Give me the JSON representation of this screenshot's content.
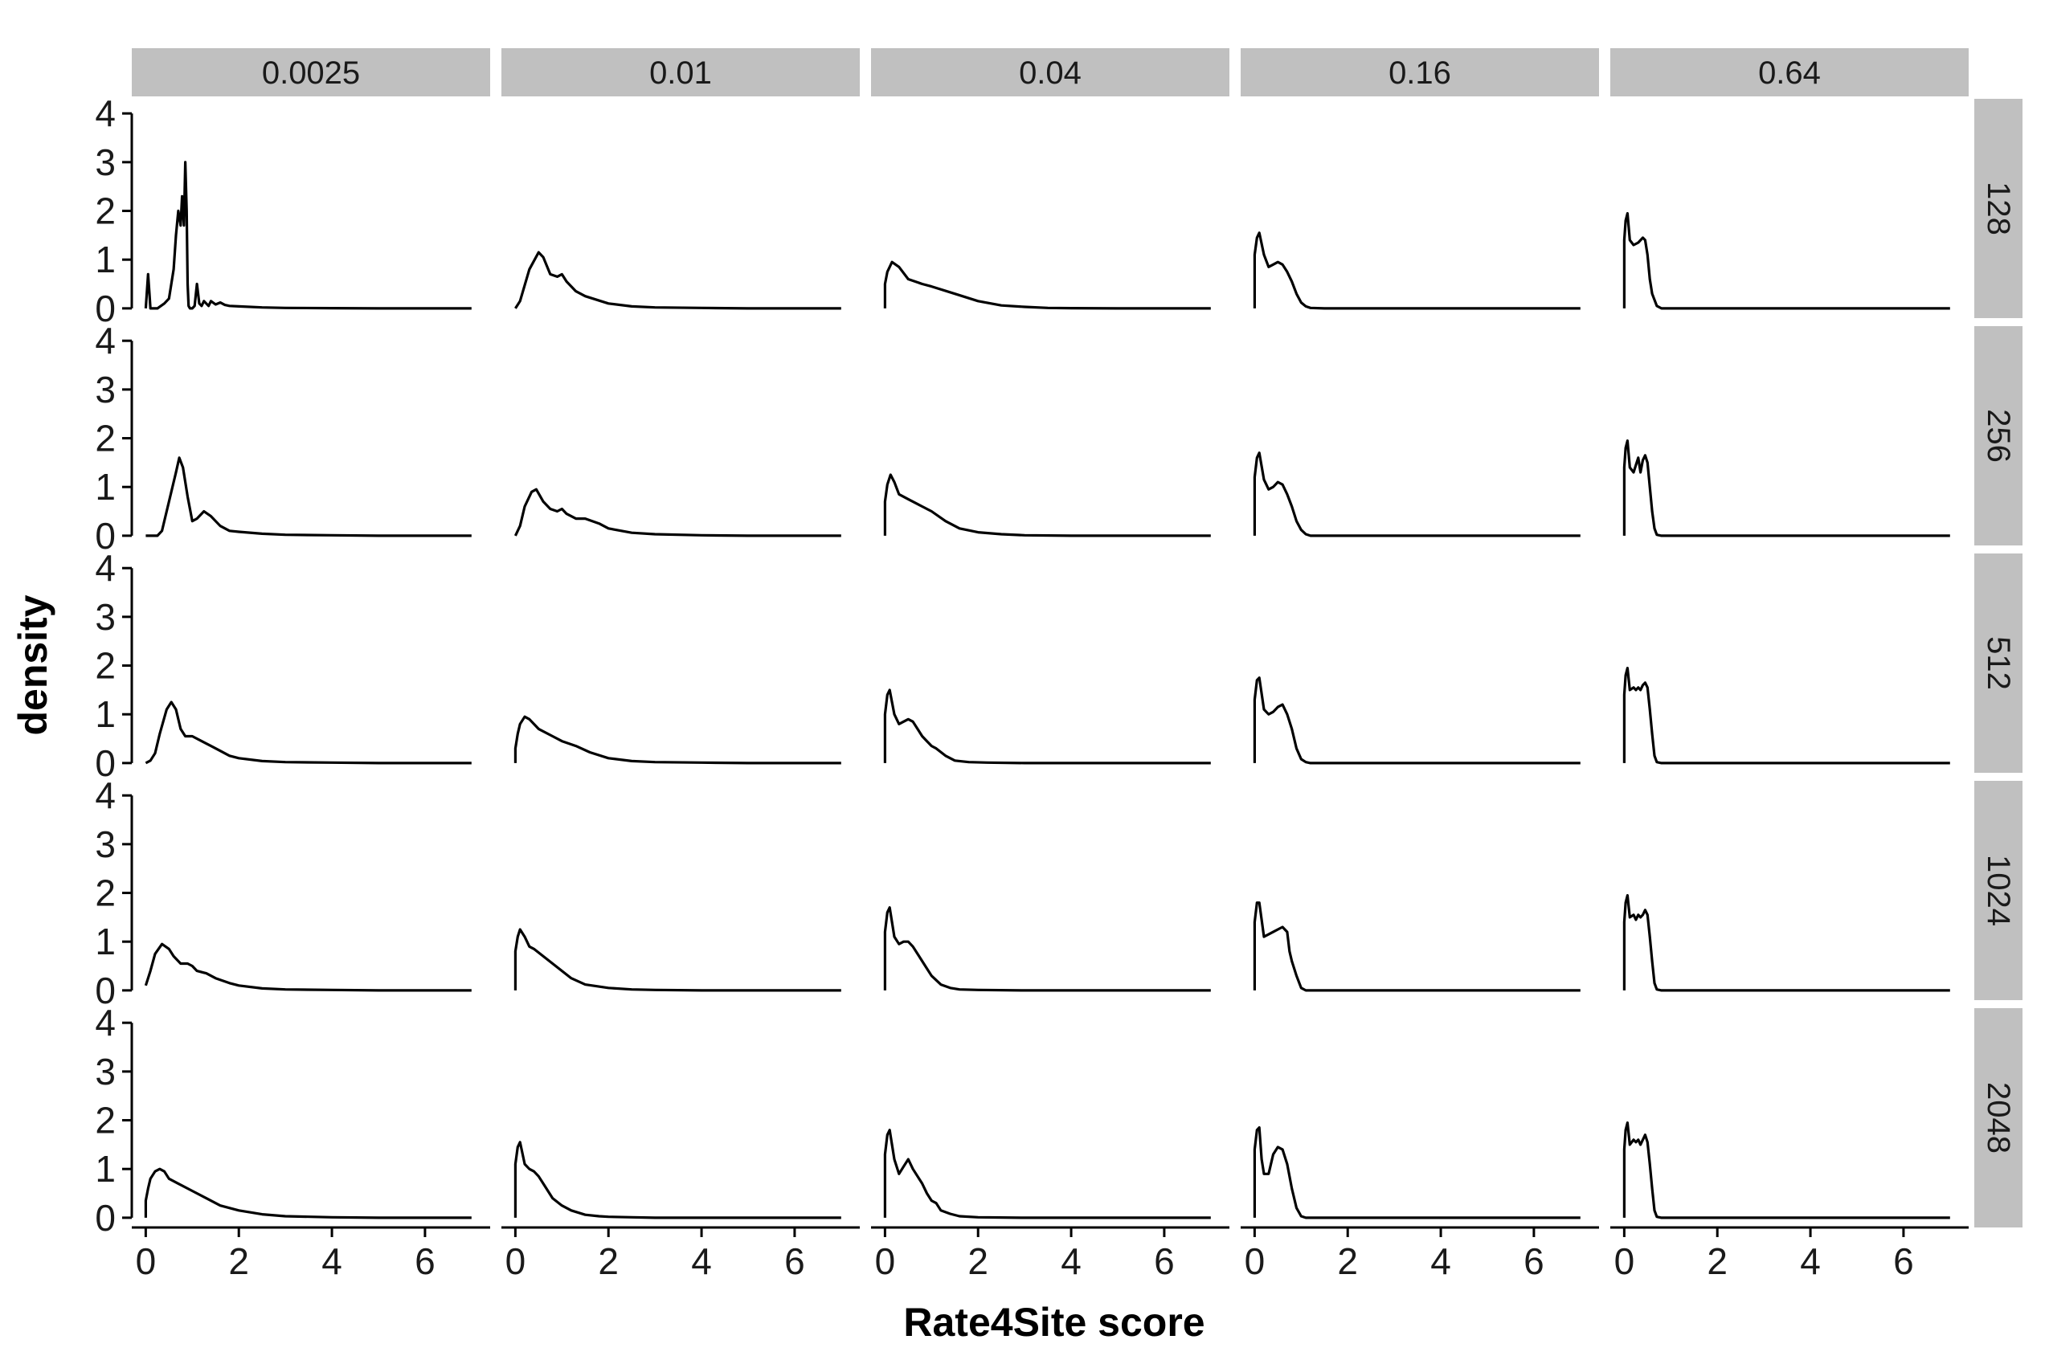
{
  "chart_data": {
    "type": "line",
    "title": "",
    "xlabel": "Rate4Site score",
    "ylabel": "density",
    "xlim": [
      -0.3,
      7.4
    ],
    "ylim": [
      -0.2,
      4.3
    ],
    "x_ticks": [
      "0",
      "2",
      "4",
      "6"
    ],
    "y_ticks": [
      "0",
      "1",
      "2",
      "3",
      "4"
    ],
    "grid": false,
    "legend": "none",
    "colors": {
      "line": "#000000",
      "strip": "#c0c0c0",
      "axis": "#000000"
    },
    "facet_columns": [
      "0.0025",
      "0.01",
      "0.04",
      "0.16",
      "0.64"
    ],
    "facet_rows": [
      "128",
      "256",
      "512",
      "1024",
      "2048"
    ],
    "panels": [
      {
        "row": "128",
        "col": "0.0025",
        "x": [
          0,
          0.05,
          0.08,
          0.1,
          0.12,
          0.15,
          0.25,
          0.4,
          0.5,
          0.55,
          0.6,
          0.65,
          0.7,
          0.75,
          0.78,
          0.82,
          0.85,
          0.88,
          0.9,
          0.92,
          0.95,
          1.0,
          1.05,
          1.1,
          1.15,
          1.2,
          1.25,
          1.3,
          1.35,
          1.4,
          1.5,
          1.6,
          1.7,
          1.8,
          2.0,
          2.5,
          3,
          4,
          5,
          6,
          7
        ],
        "y": [
          0,
          0.7,
          0.3,
          0,
          0,
          0,
          0,
          0.1,
          0.2,
          0.5,
          0.8,
          1.5,
          2.0,
          1.7,
          2.3,
          1.7,
          3.0,
          2.0,
          0.5,
          0.05,
          0,
          0,
          0.05,
          0.5,
          0.1,
          0.05,
          0.15,
          0.1,
          0.05,
          0.15,
          0.08,
          0.12,
          0.07,
          0.05,
          0.04,
          0.02,
          0.01,
          0.005,
          0,
          0,
          0
        ]
      },
      {
        "row": "128",
        "col": "0.01",
        "x": [
          0,
          0.1,
          0.3,
          0.5,
          0.6,
          0.75,
          0.9,
          1.0,
          1.1,
          1.3,
          1.5,
          2,
          2.5,
          3,
          4,
          5,
          6,
          7
        ],
        "y": [
          0,
          0.15,
          0.8,
          1.15,
          1.05,
          0.7,
          0.65,
          0.7,
          0.55,
          0.35,
          0.25,
          0.1,
          0.04,
          0.02,
          0.01,
          0,
          0,
          0
        ],
        "drop_left": false
      },
      {
        "row": "128",
        "col": "0.04",
        "x": [
          0,
          0.05,
          0.15,
          0.3,
          0.5,
          0.8,
          1.0,
          1.5,
          2.0,
          2.5,
          3,
          3.5,
          4,
          5,
          6,
          7
        ],
        "y": [
          0.5,
          0.75,
          0.95,
          0.85,
          0.6,
          0.5,
          0.45,
          0.3,
          0.15,
          0.06,
          0.03,
          0.01,
          0.005,
          0,
          0,
          0
        ],
        "drop_left": true
      },
      {
        "row": "128",
        "col": "0.16",
        "x": [
          0,
          0.05,
          0.1,
          0.2,
          0.3,
          0.4,
          0.5,
          0.6,
          0.7,
          0.8,
          0.9,
          1.0,
          1.1,
          1.2,
          1.5,
          2,
          3,
          4,
          5,
          6,
          7
        ],
        "y": [
          1.1,
          1.45,
          1.55,
          1.1,
          0.85,
          0.9,
          0.95,
          0.9,
          0.75,
          0.55,
          0.3,
          0.12,
          0.04,
          0.01,
          0,
          0,
          0,
          0,
          0,
          0,
          0
        ],
        "drop_left": true
      },
      {
        "row": "128",
        "col": "0.64",
        "x": [
          0,
          0.03,
          0.07,
          0.12,
          0.2,
          0.3,
          0.4,
          0.45,
          0.5,
          0.55,
          0.6,
          0.7,
          0.8,
          1,
          2,
          3,
          4,
          5,
          6,
          7
        ],
        "y": [
          1.4,
          1.8,
          1.95,
          1.4,
          1.3,
          1.35,
          1.45,
          1.4,
          1.1,
          0.6,
          0.3,
          0.05,
          0,
          0,
          0,
          0,
          0,
          0,
          0,
          0
        ],
        "drop_left": true
      },
      {
        "row": "256",
        "col": "0.0025",
        "x": [
          0,
          0.25,
          0.35,
          0.45,
          0.55,
          0.65,
          0.72,
          0.8,
          0.9,
          1.0,
          1.1,
          1.25,
          1.4,
          1.6,
          1.8,
          2.0,
          2.5,
          3,
          4,
          5,
          6,
          7
        ],
        "y": [
          0,
          0,
          0.1,
          0.5,
          0.9,
          1.3,
          1.6,
          1.4,
          0.8,
          0.3,
          0.35,
          0.5,
          0.4,
          0.2,
          0.1,
          0.08,
          0.04,
          0.02,
          0.01,
          0,
          0,
          0
        ],
        "drop_left": false
      },
      {
        "row": "256",
        "col": "0.01",
        "x": [
          0,
          0.1,
          0.2,
          0.35,
          0.45,
          0.6,
          0.75,
          0.9,
          1.0,
          1.1,
          1.3,
          1.5,
          1.8,
          2,
          2.5,
          3,
          4,
          5,
          6,
          7
        ],
        "y": [
          0,
          0.2,
          0.6,
          0.9,
          0.95,
          0.7,
          0.55,
          0.5,
          0.55,
          0.45,
          0.35,
          0.35,
          0.25,
          0.15,
          0.06,
          0.03,
          0.01,
          0,
          0,
          0
        ],
        "drop_left": false
      },
      {
        "row": "256",
        "col": "0.04",
        "x": [
          0,
          0.05,
          0.12,
          0.2,
          0.3,
          0.5,
          0.8,
          1.0,
          1.3,
          1.6,
          2.0,
          2.5,
          3,
          4,
          5,
          6,
          7
        ],
        "y": [
          0.7,
          1.05,
          1.25,
          1.1,
          0.85,
          0.75,
          0.6,
          0.5,
          0.3,
          0.15,
          0.07,
          0.03,
          0.01,
          0,
          0,
          0,
          0
        ],
        "drop_left": true
      },
      {
        "row": "256",
        "col": "0.16",
        "x": [
          0,
          0.05,
          0.1,
          0.2,
          0.3,
          0.4,
          0.5,
          0.6,
          0.7,
          0.8,
          0.9,
          1.0,
          1.1,
          1.2,
          1.5,
          2,
          3,
          4,
          5,
          6,
          7
        ],
        "y": [
          1.2,
          1.6,
          1.7,
          1.15,
          0.95,
          1.0,
          1.1,
          1.05,
          0.85,
          0.6,
          0.3,
          0.12,
          0.03,
          0,
          0,
          0,
          0,
          0,
          0,
          0,
          0
        ],
        "drop_left": true
      },
      {
        "row": "256",
        "col": "0.64",
        "x": [
          0,
          0.03,
          0.07,
          0.12,
          0.2,
          0.25,
          0.3,
          0.35,
          0.4,
          0.45,
          0.5,
          0.55,
          0.6,
          0.65,
          0.7,
          0.8,
          1,
          2,
          3,
          4,
          5,
          6,
          7
        ],
        "y": [
          1.4,
          1.8,
          1.95,
          1.4,
          1.3,
          1.45,
          1.6,
          1.3,
          1.55,
          1.65,
          1.5,
          1.0,
          0.5,
          0.15,
          0.02,
          0,
          0,
          0,
          0,
          0,
          0,
          0,
          0
        ],
        "drop_left": true
      },
      {
        "row": "512",
        "col": "0.0025",
        "x": [
          0,
          0.1,
          0.2,
          0.3,
          0.45,
          0.55,
          0.65,
          0.75,
          0.85,
          1.0,
          1.2,
          1.4,
          1.6,
          1.8,
          2.0,
          2.5,
          3,
          4,
          5,
          6,
          7
        ],
        "y": [
          0,
          0.05,
          0.2,
          0.6,
          1.1,
          1.25,
          1.1,
          0.7,
          0.55,
          0.55,
          0.45,
          0.35,
          0.25,
          0.15,
          0.1,
          0.04,
          0.02,
          0.01,
          0,
          0,
          0
        ],
        "drop_left": false
      },
      {
        "row": "512",
        "col": "0.01",
        "x": [
          0,
          0.05,
          0.1,
          0.2,
          0.3,
          0.5,
          0.8,
          1.0,
          1.3,
          1.6,
          2.0,
          2.5,
          3,
          4,
          5,
          6,
          7
        ],
        "y": [
          0.3,
          0.6,
          0.8,
          0.95,
          0.9,
          0.7,
          0.55,
          0.45,
          0.35,
          0.22,
          0.1,
          0.04,
          0.02,
          0.01,
          0,
          0,
          0
        ],
        "drop_left": true
      },
      {
        "row": "512",
        "col": "0.04",
        "x": [
          0,
          0.05,
          0.1,
          0.2,
          0.3,
          0.4,
          0.5,
          0.6,
          0.7,
          0.8,
          0.9,
          1.0,
          1.1,
          1.3,
          1.5,
          1.8,
          2.2,
          3,
          4,
          5,
          6,
          7
        ],
        "y": [
          1.0,
          1.4,
          1.5,
          1.0,
          0.8,
          0.85,
          0.9,
          0.85,
          0.7,
          0.55,
          0.45,
          0.35,
          0.3,
          0.15,
          0.05,
          0.02,
          0.01,
          0,
          0,
          0,
          0,
          0
        ],
        "drop_left": true
      },
      {
        "row": "512",
        "col": "0.16",
        "x": [
          0,
          0.05,
          0.1,
          0.2,
          0.3,
          0.4,
          0.5,
          0.6,
          0.7,
          0.8,
          0.9,
          1.0,
          1.1,
          1.2,
          1.5,
          2,
          3,
          4,
          5,
          6,
          7
        ],
        "y": [
          1.3,
          1.7,
          1.75,
          1.1,
          1.0,
          1.05,
          1.15,
          1.2,
          1.0,
          0.7,
          0.3,
          0.08,
          0.02,
          0,
          0,
          0,
          0,
          0,
          0,
          0,
          0
        ],
        "drop_left": true
      },
      {
        "row": "512",
        "col": "0.64",
        "x": [
          0,
          0.03,
          0.07,
          0.12,
          0.2,
          0.25,
          0.3,
          0.35,
          0.4,
          0.45,
          0.5,
          0.55,
          0.6,
          0.65,
          0.7,
          0.8,
          1,
          2,
          3,
          4,
          5,
          6,
          7
        ],
        "y": [
          1.4,
          1.8,
          1.95,
          1.5,
          1.55,
          1.5,
          1.55,
          1.5,
          1.6,
          1.65,
          1.55,
          1.1,
          0.6,
          0.15,
          0.02,
          0,
          0,
          0,
          0,
          0,
          0,
          0,
          0
        ],
        "drop_left": true
      },
      {
        "row": "1024",
        "col": "0.0025",
        "x": [
          0,
          0.1,
          0.2,
          0.35,
          0.5,
          0.6,
          0.75,
          0.9,
          1.0,
          1.1,
          1.3,
          1.5,
          1.8,
          2.0,
          2.5,
          3,
          4,
          5,
          6,
          7
        ],
        "y": [
          0.1,
          0.4,
          0.75,
          0.95,
          0.85,
          0.7,
          0.55,
          0.55,
          0.5,
          0.4,
          0.35,
          0.25,
          0.15,
          0.1,
          0.04,
          0.02,
          0.01,
          0,
          0,
          0
        ],
        "drop_left": false
      },
      {
        "row": "1024",
        "col": "0.01",
        "x": [
          0,
          0.05,
          0.1,
          0.2,
          0.3,
          0.4,
          0.6,
          0.8,
          1.0,
          1.2,
          1.5,
          2.0,
          2.5,
          3,
          4,
          5,
          6,
          7
        ],
        "y": [
          0.8,
          1.1,
          1.25,
          1.1,
          0.9,
          0.85,
          0.7,
          0.55,
          0.4,
          0.25,
          0.12,
          0.05,
          0.02,
          0.01,
          0,
          0,
          0,
          0
        ],
        "drop_left": true
      },
      {
        "row": "1024",
        "col": "0.04",
        "x": [
          0,
          0.05,
          0.1,
          0.2,
          0.3,
          0.4,
          0.5,
          0.6,
          0.7,
          0.8,
          0.9,
          1.0,
          1.2,
          1.4,
          1.6,
          2.0,
          3,
          4,
          5,
          6,
          7
        ],
        "y": [
          1.2,
          1.6,
          1.7,
          1.1,
          0.95,
          1.0,
          1.0,
          0.9,
          0.75,
          0.6,
          0.45,
          0.3,
          0.12,
          0.05,
          0.02,
          0.01,
          0,
          0,
          0,
          0,
          0
        ],
        "drop_left": true
      },
      {
        "row": "1024",
        "col": "0.16",
        "x": [
          0,
          0.05,
          0.1,
          0.2,
          0.3,
          0.4,
          0.5,
          0.6,
          0.7,
          0.75,
          0.8,
          0.9,
          1.0,
          1.1,
          1.5,
          2,
          3,
          4,
          5,
          6,
          7
        ],
        "y": [
          1.4,
          1.8,
          1.8,
          1.1,
          1.15,
          1.2,
          1.25,
          1.3,
          1.2,
          0.8,
          0.6,
          0.3,
          0.05,
          0,
          0,
          0,
          0,
          0,
          0,
          0,
          0
        ],
        "drop_left": true
      },
      {
        "row": "1024",
        "col": "0.64",
        "x": [
          0,
          0.03,
          0.07,
          0.12,
          0.2,
          0.25,
          0.3,
          0.35,
          0.4,
          0.45,
          0.5,
          0.55,
          0.6,
          0.65,
          0.7,
          0.8,
          1,
          2,
          3,
          4,
          5,
          6,
          7
        ],
        "y": [
          1.4,
          1.8,
          1.95,
          1.5,
          1.55,
          1.45,
          1.55,
          1.5,
          1.55,
          1.65,
          1.55,
          1.1,
          0.6,
          0.15,
          0.02,
          0,
          0,
          0,
          0,
          0,
          0,
          0,
          0
        ],
        "drop_left": true
      },
      {
        "row": "2048",
        "col": "0.0025",
        "x": [
          0,
          0.05,
          0.1,
          0.2,
          0.3,
          0.4,
          0.5,
          0.7,
          1.0,
          1.3,
          1.6,
          2.0,
          2.5,
          3,
          4,
          5,
          6,
          7
        ],
        "y": [
          0.35,
          0.6,
          0.8,
          0.95,
          1.0,
          0.95,
          0.8,
          0.7,
          0.55,
          0.4,
          0.25,
          0.15,
          0.07,
          0.03,
          0.01,
          0,
          0,
          0
        ],
        "drop_left": true
      },
      {
        "row": "2048",
        "col": "0.01",
        "x": [
          0,
          0.05,
          0.1,
          0.2,
          0.3,
          0.4,
          0.5,
          0.6,
          0.8,
          1.0,
          1.2,
          1.5,
          1.8,
          2.0,
          2.5,
          3,
          4,
          5,
          6,
          7
        ],
        "y": [
          1.1,
          1.45,
          1.55,
          1.1,
          1.0,
          0.95,
          0.85,
          0.7,
          0.4,
          0.25,
          0.15,
          0.06,
          0.03,
          0.02,
          0.01,
          0,
          0,
          0,
          0,
          0
        ],
        "drop_left": true
      },
      {
        "row": "2048",
        "col": "0.04",
        "x": [
          0,
          0.05,
          0.1,
          0.2,
          0.3,
          0.4,
          0.5,
          0.6,
          0.7,
          0.8,
          0.9,
          1.0,
          1.1,
          1.2,
          1.4,
          1.6,
          2.0,
          3,
          4,
          5,
          6,
          7
        ],
        "y": [
          1.3,
          1.7,
          1.8,
          1.2,
          0.9,
          1.05,
          1.2,
          1.0,
          0.85,
          0.7,
          0.5,
          0.35,
          0.3,
          0.15,
          0.08,
          0.03,
          0.01,
          0,
          0,
          0,
          0,
          0
        ],
        "drop_left": true
      },
      {
        "row": "2048",
        "col": "0.16",
        "x": [
          0,
          0.05,
          0.1,
          0.15,
          0.2,
          0.3,
          0.4,
          0.5,
          0.6,
          0.7,
          0.8,
          0.9,
          1.0,
          1.1,
          1.5,
          2,
          3,
          4,
          5,
          6,
          7
        ],
        "y": [
          1.4,
          1.8,
          1.85,
          1.2,
          0.9,
          0.9,
          1.3,
          1.45,
          1.4,
          1.1,
          0.6,
          0.2,
          0.03,
          0,
          0,
          0,
          0,
          0,
          0,
          0,
          0
        ],
        "drop_left": true
      },
      {
        "row": "2048",
        "col": "0.64",
        "x": [
          0,
          0.03,
          0.07,
          0.12,
          0.2,
          0.25,
          0.3,
          0.35,
          0.4,
          0.45,
          0.5,
          0.55,
          0.6,
          0.65,
          0.7,
          0.8,
          1,
          2,
          3,
          4,
          5,
          6,
          7
        ],
        "y": [
          1.4,
          1.8,
          1.95,
          1.5,
          1.6,
          1.55,
          1.6,
          1.5,
          1.6,
          1.7,
          1.55,
          1.1,
          0.6,
          0.15,
          0.02,
          0,
          0,
          0,
          0,
          0,
          0,
          0,
          0
        ],
        "drop_left": true
      }
    ]
  }
}
